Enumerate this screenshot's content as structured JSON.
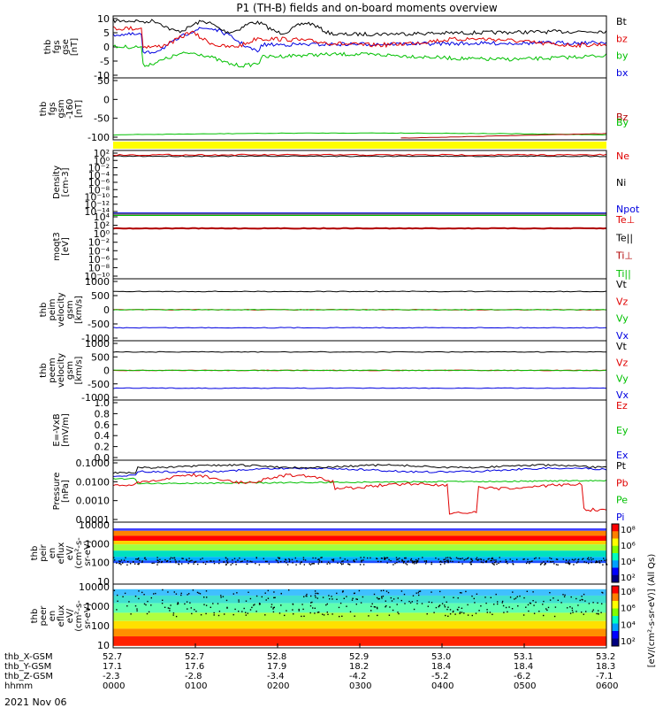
{
  "title": "P1 (TH-B) fields and on-board moments overview",
  "date": "2021 Nov 06",
  "colors": {
    "black": "#000000",
    "red": "#e00000",
    "green": "#00c000",
    "blue": "#0000e0",
    "yellow": "#ffff00"
  },
  "chart_data": [
    {
      "type": "line",
      "ylabel": [
        "thb",
        "fgs",
        "gse",
        "[nT]"
      ],
      "yticks": [
        "10",
        "5",
        "0",
        "-5",
        "-10"
      ],
      "ylim": [
        -10,
        10
      ],
      "series": [
        {
          "name": "Bt",
          "color": "#000000",
          "shape": "bt"
        },
        {
          "name": "bz",
          "color": "#e00000",
          "shape": "bz"
        },
        {
          "name": "by",
          "color": "#00c000",
          "shape": "by"
        },
        {
          "name": "bx",
          "color": "#0000e0",
          "shape": "bx"
        }
      ]
    },
    {
      "type": "line",
      "ylabel": [
        "thb",
        "fgs",
        "gsm",
        "-160",
        "[nT]"
      ],
      "yticks": [
        "50",
        "0",
        "-50",
        "-100"
      ],
      "ylim": [
        -160,
        80
      ],
      "series": [
        {
          "name": "Bz",
          "color": "#b00000"
        },
        {
          "name": "By",
          "color": "#00c000"
        }
      ]
    },
    {
      "type": "line",
      "ylabel": [
        "Density",
        "[cm-3]"
      ],
      "yticks": [
        "10²",
        "10⁰",
        "10⁻²",
        "10⁻⁴",
        "10⁻⁶",
        "10⁻⁸",
        "10⁻¹⁰",
        "10⁻¹²",
        "10⁻¹⁴"
      ],
      "log": true,
      "series": [
        {
          "name": "Ne",
          "color": "#e00000"
        },
        {
          "name": "Ni",
          "color": "#000000"
        },
        {
          "name": "Npot",
          "color": "#0000e0"
        }
      ]
    },
    {
      "type": "line",
      "ylabel": [
        "moqt3",
        "[eV]"
      ],
      "yticks": [
        "10⁴",
        "10²",
        "10⁰",
        "10⁻²",
        "10⁻⁴",
        "10⁻⁶",
        "10⁻⁸",
        "10⁻¹⁰"
      ],
      "log": true,
      "series": [
        {
          "name": "Te⊥",
          "color": "#e00000"
        },
        {
          "name": "Te||",
          "color": "#000000"
        },
        {
          "name": "Ti⊥",
          "color": "#b00000"
        },
        {
          "name": "Ti||",
          "color": "#00c000"
        }
      ]
    },
    {
      "type": "line",
      "ylabel": [
        "thb",
        "peim",
        "velocity",
        "gsm",
        "[km/s]"
      ],
      "yticks": [
        "1000",
        "500",
        "0",
        "-500",
        "-1000"
      ],
      "ylim": [
        -1000,
        1000
      ],
      "series": [
        {
          "name": "Vt",
          "color": "#000000",
          "value": 590
        },
        {
          "name": "Vz",
          "color": "#e00000",
          "value": 0
        },
        {
          "name": "Vy",
          "color": "#00c000",
          "value": 0
        },
        {
          "name": "Vx",
          "color": "#0000e0",
          "value": -580
        }
      ]
    },
    {
      "type": "line",
      "ylabel": [
        "thb",
        "peem",
        "velocity",
        "gsm",
        "[km/s]"
      ],
      "yticks": [
        "1000",
        "500",
        "0",
        "-500",
        "-1000"
      ],
      "ylim": [
        -1000,
        1000
      ],
      "series": [
        {
          "name": "Vt",
          "color": "#000000",
          "value": 620
        },
        {
          "name": "Vz",
          "color": "#e00000",
          "value": 0
        },
        {
          "name": "Vy",
          "color": "#00c000",
          "value": 0
        },
        {
          "name": "Vx",
          "color": "#0000e0",
          "value": -600
        }
      ]
    },
    {
      "type": "line",
      "ylabel": [
        "E=-VxB",
        "[mV/m]"
      ],
      "yticks": [
        "1.0",
        "0.8",
        "0.6",
        "0.4",
        "0.2",
        "0.0"
      ],
      "ylim": [
        0,
        1
      ],
      "series": [
        {
          "name": "Ez",
          "color": "#e00000"
        },
        {
          "name": "Ey",
          "color": "#00c000"
        },
        {
          "name": "Ex",
          "color": "#0000e0"
        }
      ]
    },
    {
      "type": "line",
      "ylabel": [
        "Pressure",
        "[nPa]"
      ],
      "yticks": [
        "0.1000",
        "0.0100",
        "0.0010",
        "0.0001"
      ],
      "log": true,
      "series": [
        {
          "name": "Pt",
          "color": "#000000"
        },
        {
          "name": "Pb",
          "color": "#e00000"
        },
        {
          "name": "Pe",
          "color": "#00c000"
        },
        {
          "name": "Pi",
          "color": "#0000e0"
        }
      ]
    },
    {
      "type": "heatmap",
      "ylabel": [
        "thb",
        "peir",
        "en",
        "eflux",
        "eV/",
        "(cm²-s-",
        "sr-eV)"
      ],
      "yticks": [
        "10000",
        "1000",
        "100",
        "10"
      ]
    },
    {
      "type": "heatmap",
      "ylabel": [
        "thb",
        "peer",
        "en",
        "eflux",
        "eV/",
        "(cm²-s-",
        "sr-eV)"
      ],
      "yticks": [
        "10000",
        "1000",
        "100",
        "10"
      ]
    }
  ],
  "colorbar": {
    "top": {
      "ticks": [
        "10⁸",
        "10⁶",
        "10⁴",
        "10²"
      ]
    },
    "bottom": {
      "ticks": [
        "10⁸",
        "10⁶",
        "10⁴",
        "10²"
      ]
    },
    "label": "[eV/(cm²-s-sr-eV)] (All Qs)"
  },
  "xaxis": {
    "row_labels": [
      "thb_X-GSM",
      "thb_Y-GSM",
      "thb_Z-GSM",
      "hhmm"
    ],
    "ticks": [
      [
        "52.7",
        "17.1",
        "-2.3",
        "0000"
      ],
      [
        "52.7",
        "17.6",
        "-2.8",
        "0100"
      ],
      [
        "52.8",
        "17.9",
        "-3.4",
        "0200"
      ],
      [
        "52.9",
        "18.2",
        "-4.2",
        "0300"
      ],
      [
        "53.0",
        "18.4",
        "-5.2",
        "0400"
      ],
      [
        "53.1",
        "18.4",
        "-6.2",
        "0500"
      ],
      [
        "53.2",
        "18.3",
        "-7.1",
        "0600"
      ]
    ]
  }
}
